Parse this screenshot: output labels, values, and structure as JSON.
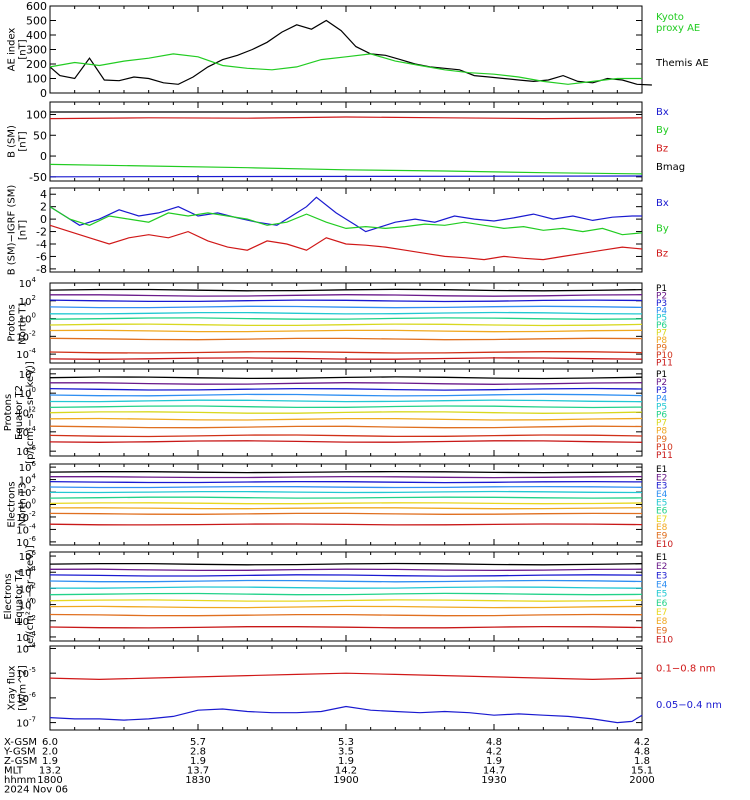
{
  "colors": {
    "black": "#000000",
    "blue": "#1a1ad0",
    "green": "#22cc22",
    "red": "#d01818",
    "P": [
      "#000000",
      "#6a1a8a",
      "#1a1ad0",
      "#2f8ff2",
      "#22c8d2",
      "#22d28a",
      "#d8d820",
      "#f0a820",
      "#e07020",
      "#d03018",
      "#c81818"
    ],
    "E": [
      "#000000",
      "#6a1a8a",
      "#1a1ad0",
      "#2f8ff2",
      "#22c8d2",
      "#22d28a",
      "#e8d820",
      "#f0a820",
      "#e07020",
      "#c81818"
    ]
  },
  "footer": {
    "labels": [
      "X-GSM",
      "Y-GSM",
      "Z-GSM",
      "MLT",
      "hhmm"
    ],
    "date": "2024 Nov 06",
    "columns": [
      [
        "6.0",
        "2.0",
        "1.9",
        "13.2",
        "1800"
      ],
      [
        "5.7",
        "2.8",
        "1.9",
        "13.7",
        "1830"
      ],
      [
        "5.3",
        "3.5",
        "1.9",
        "14.2",
        "1900"
      ],
      [
        "4.8",
        "4.2",
        "1.9",
        "14.7",
        "1930"
      ],
      [
        "4.2",
        "4.8",
        "1.8",
        "15.1",
        "2000"
      ]
    ]
  },
  "chart_data": [
    {
      "type": "line",
      "ylabel": [
        "AE index",
        "[nT]"
      ],
      "ylim": [
        0,
        600
      ],
      "yticks": [
        "0",
        "100",
        "200",
        "300",
        "400",
        "500",
        "600"
      ],
      "x_range": [
        "1800",
        "2000"
      ],
      "legend": [
        {
          "text": "Kyoto",
          "color": "green"
        },
        {
          "text": "proxy AE",
          "color": "green"
        },
        {
          "text": "Themis AE",
          "color": "black"
        }
      ],
      "series": [
        {
          "name": "Themis AE",
          "color": "black",
          "x": [
            0,
            2,
            5,
            8,
            11,
            14,
            17,
            20,
            23,
            26,
            29,
            32,
            35,
            38,
            41,
            44,
            47,
            50,
            53,
            56,
            59,
            62,
            65,
            68,
            71,
            74,
            77,
            80,
            83,
            86,
            89,
            92,
            95,
            98,
            101,
            104,
            107,
            110,
            113,
            116,
            119,
            122
          ],
          "values": [
            180,
            120,
            100,
            240,
            90,
            85,
            110,
            100,
            70,
            60,
            110,
            180,
            230,
            260,
            300,
            350,
            420,
            470,
            440,
            500,
            430,
            320,
            270,
            260,
            230,
            200,
            180,
            170,
            160,
            120,
            110,
            100,
            90,
            80,
            90,
            120,
            80,
            70,
            100,
            90,
            60,
            55
          ]
        },
        {
          "name": "Kyoto proxy AE",
          "color": "green",
          "x": [
            0,
            5,
            10,
            15,
            20,
            25,
            30,
            35,
            40,
            45,
            50,
            55,
            60,
            65,
            70,
            75,
            80,
            85,
            90,
            95,
            100,
            105,
            110,
            115,
            120
          ],
          "values": [
            180,
            210,
            190,
            220,
            240,
            270,
            250,
            190,
            170,
            160,
            180,
            230,
            250,
            270,
            220,
            190,
            160,
            140,
            130,
            110,
            80,
            60,
            80,
            100,
            100
          ]
        }
      ]
    },
    {
      "type": "line",
      "ylabel": [
        "B (SM)",
        "[nT]"
      ],
      "ylim": [
        -60,
        130
      ],
      "yticks": [
        "-50",
        "0",
        "50",
        "100"
      ],
      "legend": [
        {
          "text": "Bx",
          "color": "blue"
        },
        {
          "text": "By",
          "color": "green"
        },
        {
          "text": "Bz",
          "color": "red"
        },
        {
          "text": "Bmag",
          "color": "black"
        }
      ],
      "series": [
        {
          "name": "Bmag",
          "color": "black",
          "x": [
            0,
            120
          ],
          "values": [
            106,
            106
          ]
        },
        {
          "name": "Bz",
          "color": "red",
          "x": [
            0,
            20,
            40,
            60,
            80,
            100,
            120
          ],
          "values": [
            90,
            92,
            91,
            94,
            92,
            90,
            92
          ]
        },
        {
          "name": "By",
          "color": "green",
          "x": [
            0,
            20,
            40,
            60,
            80,
            100,
            120
          ],
          "values": [
            -20,
            -24,
            -28,
            -33,
            -36,
            -40,
            -43
          ]
        },
        {
          "name": "Bx",
          "color": "blue",
          "x": [
            0,
            120
          ],
          "values": [
            -50,
            -48
          ]
        }
      ]
    },
    {
      "type": "line",
      "ylabel": [
        "B (SM)−IGRF (SM)",
        "[nT]"
      ],
      "ylim": [
        -8.5,
        5
      ],
      "yticks": [
        "-8",
        "-6",
        "-4",
        "-2",
        "0",
        "2",
        "4"
      ],
      "legend": [
        {
          "text": "Bx",
          "color": "blue"
        },
        {
          "text": "By",
          "color": "green"
        },
        {
          "text": "Bz",
          "color": "red"
        }
      ],
      "series": [
        {
          "name": "Bx",
          "color": "blue",
          "x": [
            0,
            3,
            6,
            10,
            14,
            18,
            22,
            26,
            30,
            34,
            38,
            42,
            46,
            50,
            52,
            54,
            58,
            60,
            62,
            64,
            66,
            68,
            70,
            74,
            78,
            82,
            86,
            90,
            94,
            98,
            102,
            106,
            110,
            114,
            118,
            120
          ],
          "values": [
            2,
            0.5,
            -1,
            0,
            1.5,
            0.5,
            1,
            2,
            0.5,
            1,
            0.2,
            -0.5,
            -1,
            1,
            2,
            3.5,
            1,
            0,
            -1,
            -2,
            -1.5,
            -1,
            -0.5,
            0,
            -0.5,
            0.5,
            0,
            -0.3,
            0.2,
            0.8,
            0,
            0.5,
            -0.2,
            0.3,
            0.5,
            0.5
          ]
        },
        {
          "name": "By",
          "color": "green",
          "x": [
            0,
            4,
            8,
            12,
            16,
            20,
            24,
            28,
            32,
            36,
            40,
            44,
            48,
            52,
            56,
            60,
            64,
            68,
            72,
            76,
            80,
            84,
            88,
            92,
            96,
            100,
            104,
            108,
            112,
            116,
            120
          ],
          "values": [
            2,
            0,
            -1,
            0.5,
            0,
            -0.5,
            1,
            0.5,
            1,
            0.5,
            0,
            -1,
            -0.5,
            0.8,
            -0.5,
            -1.5,
            -1.2,
            -1.5,
            -1.2,
            -0.8,
            -1,
            -0.5,
            -1,
            -1.5,
            -1.2,
            -1.8,
            -1.5,
            -2,
            -1.5,
            -2.5,
            -2.2
          ]
        },
        {
          "name": "Bz",
          "color": "red",
          "x": [
            0,
            4,
            8,
            12,
            16,
            20,
            24,
            28,
            32,
            36,
            40,
            44,
            48,
            52,
            56,
            60,
            64,
            68,
            72,
            76,
            80,
            84,
            88,
            92,
            96,
            100,
            104,
            108,
            112,
            116,
            120
          ],
          "values": [
            -1,
            -2,
            -3,
            -4,
            -3,
            -2.5,
            -3,
            -2,
            -3.5,
            -4.5,
            -5,
            -3.5,
            -4,
            -5,
            -3,
            -4,
            -4.2,
            -4.5,
            -5,
            -5.5,
            -6,
            -6.2,
            -6.5,
            -6,
            -6.3,
            -6.5,
            -6,
            -5.5,
            -5,
            -4.5,
            -4.8
          ]
        }
      ]
    },
    {
      "type": "line",
      "scale": "log",
      "ylabel": [
        "Protons",
        "North T1"
      ],
      "ylim_exp": [
        -5,
        4
      ],
      "ytick_exps": [
        -4,
        -2,
        0,
        2,
        4
      ],
      "legend": [
        "P1",
        "P2",
        "P3",
        "P4",
        "P5",
        "P6",
        "P7",
        "P8",
        "P9",
        "P10",
        "P11"
      ],
      "levels_exp": [
        3.2,
        2.6,
        2.0,
        1.3,
        0.6,
        0.0,
        -0.7,
        -1.4,
        -2.3,
        -3.8,
        -4.5
      ]
    },
    {
      "type": "line",
      "scale": "log",
      "ylabel": [
        "Protons",
        "Equator T2",
        "[p/(cm²−s−sr−keV)]"
      ],
      "ylim_exp": [
        -6.5,
        2.5
      ],
      "ytick_exps": [
        -6,
        -4,
        -2,
        0,
        2
      ],
      "legend": [
        "P1",
        "P2",
        "P3",
        "P4",
        "P5",
        "P6",
        "P7",
        "P8",
        "P9",
        "P10",
        "P11"
      ],
      "levels_exp": [
        1.6,
        1.0,
        0.4,
        -0.2,
        -0.8,
        -1.4,
        -2.0,
        -2.7,
        -3.5,
        -4.4,
        -5.0
      ]
    },
    {
      "type": "line",
      "scale": "log",
      "ylabel": [
        "Electrons",
        "North T3"
      ],
      "ylim_exp": [
        -6.5,
        6.5
      ],
      "ytick_exps": [
        -6,
        -4,
        -2,
        0,
        2,
        4,
        6
      ],
      "legend": [
        "E1",
        "E2",
        "E3",
        "E4",
        "E5",
        "E6",
        "E7",
        "E8",
        "E9",
        "E10"
      ],
      "levels_exp": [
        5.2,
        4.4,
        3.6,
        2.8,
        2.0,
        1.1,
        0.2,
        -0.6,
        -1.5,
        -3.2
      ]
    },
    {
      "type": "line",
      "scale": "log",
      "ylabel": [
        "Electrons",
        "Equator T4",
        "[e/(cm²−s−sr−keV)]"
      ],
      "ylim_exp": [
        -4.5,
        6.5
      ],
      "ytick_exps": [
        -4,
        -2,
        0,
        2,
        4,
        6
      ],
      "legend": [
        "E1",
        "E2",
        "E3",
        "E4",
        "E5",
        "E6",
        "E7",
        "E8",
        "E9",
        "E10"
      ],
      "levels_exp": [
        5.0,
        4.3,
        3.6,
        2.9,
        2.1,
        1.3,
        0.5,
        -0.3,
        -1.3,
        -2.8
      ]
    },
    {
      "type": "line",
      "scale": "log",
      "ylabel": [
        "Xray flux",
        "[W/m^2]"
      ],
      "ylim_exp": [
        -7.3,
        -3.9
      ],
      "ytick_exps": [
        -7,
        -6,
        -5,
        -4
      ],
      "legend": [
        {
          "text": "0.1−0.8 nm",
          "color": "red"
        },
        {
          "text": "0.05−0.4 nm",
          "color": "blue"
        }
      ],
      "series": [
        {
          "name": "0.1−0.8 nm",
          "color": "red",
          "x": [
            0,
            10,
            20,
            30,
            40,
            50,
            60,
            70,
            80,
            90,
            100,
            110,
            120
          ],
          "values": [
            -5.2,
            -5.25,
            -5.2,
            -5.15,
            -5.1,
            -5.05,
            -5.0,
            -5.05,
            -5.1,
            -5.15,
            -5.2,
            -5.25,
            -5.2
          ]
        },
        {
          "name": "0.05−0.4 nm",
          "color": "blue",
          "x": [
            0,
            5,
            10,
            15,
            20,
            25,
            30,
            35,
            40,
            45,
            50,
            55,
            60,
            65,
            70,
            75,
            80,
            85,
            90,
            95,
            100,
            105,
            110,
            115,
            118,
            120
          ],
          "values": [
            -6.8,
            -6.85,
            -6.85,
            -6.9,
            -6.85,
            -6.75,
            -6.5,
            -6.45,
            -6.55,
            -6.6,
            -6.6,
            -6.55,
            -6.35,
            -6.5,
            -6.55,
            -6.6,
            -6.55,
            -6.6,
            -6.7,
            -6.65,
            -6.7,
            -6.75,
            -6.85,
            -7.0,
            -6.95,
            -6.7
          ]
        }
      ]
    }
  ]
}
